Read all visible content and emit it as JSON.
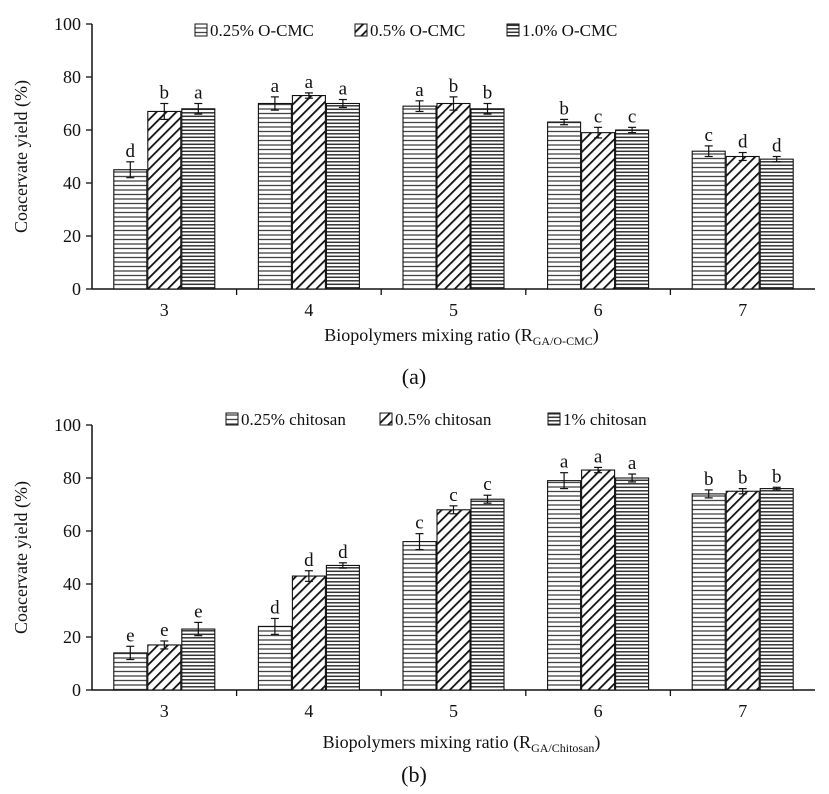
{
  "chart_data": [
    {
      "type": "bar",
      "panel_label": "(a)",
      "ylabel": "Coacervate yield (%)",
      "xlabel": {
        "main": "Biopolymers mixing ratio (R",
        "sub": "GA/O-CMC",
        "close": ")"
      },
      "ylim": [
        0,
        100
      ],
      "yticks": [
        "0",
        "20",
        "40",
        "60",
        "80",
        "100"
      ],
      "categories": [
        "3",
        "4",
        "5",
        "6",
        "7"
      ],
      "legend_position": "top",
      "series": [
        {
          "name": "0.25% O-CMC",
          "pattern": "horizontal-lines",
          "values": [
            45,
            70,
            69,
            63,
            52
          ],
          "errors": [
            3,
            2.5,
            2,
            1,
            2
          ],
          "labels": [
            "d",
            "a",
            "a",
            "b",
            "c"
          ]
        },
        {
          "name": "0.5% O-CMC",
          "pattern": "diagonal-lines",
          "values": [
            67,
            73,
            70,
            59,
            50
          ],
          "errors": [
            3,
            1,
            2.5,
            2,
            1.5
          ],
          "labels": [
            "b",
            "a",
            "b",
            "c",
            "d"
          ]
        },
        {
          "name": "1.0% O-CMC",
          "pattern": "horizontal-lines",
          "values": [
            68,
            70,
            68,
            60,
            49
          ],
          "errors": [
            2,
            1.5,
            2,
            1,
            1
          ],
          "labels": [
            "a",
            "a",
            "b",
            "c",
            "d"
          ]
        }
      ]
    },
    {
      "type": "bar",
      "panel_label": "(b)",
      "ylabel": "Coacervate yield (%)",
      "xlabel": {
        "main": "Biopolymers mixing ratio (R",
        "sub": "GA/Chitosan",
        "close": ")"
      },
      "ylim": [
        0,
        100
      ],
      "yticks": [
        "0",
        "20",
        "40",
        "60",
        "80",
        "100"
      ],
      "categories": [
        "3",
        "4",
        "5",
        "6",
        "7"
      ],
      "legend_position": "top",
      "series": [
        {
          "name": "0.25% chitosan",
          "pattern": "horizontal-lines",
          "values": [
            14,
            24,
            56,
            79,
            74
          ],
          "errors": [
            2.5,
            3,
            3,
            3,
            1.5
          ],
          "labels": [
            "e",
            "d",
            "c",
            "a",
            "b"
          ]
        },
        {
          "name": "0.5% chitosan",
          "pattern": "diagonal-lines",
          "values": [
            17,
            43,
            68,
            83,
            75
          ],
          "errors": [
            1.5,
            2,
            1.5,
            1,
            1
          ],
          "labels": [
            "e",
            "d",
            "c",
            "a",
            "b"
          ]
        },
        {
          "name": "1% chitosan",
          "pattern": "horizontal-lines",
          "values": [
            23,
            47,
            72,
            80,
            76
          ],
          "errors": [
            2.5,
            1,
            1.5,
            1.5,
            0.5
          ],
          "labels": [
            "e",
            "d",
            "c",
            "a",
            "b"
          ]
        }
      ]
    }
  ]
}
